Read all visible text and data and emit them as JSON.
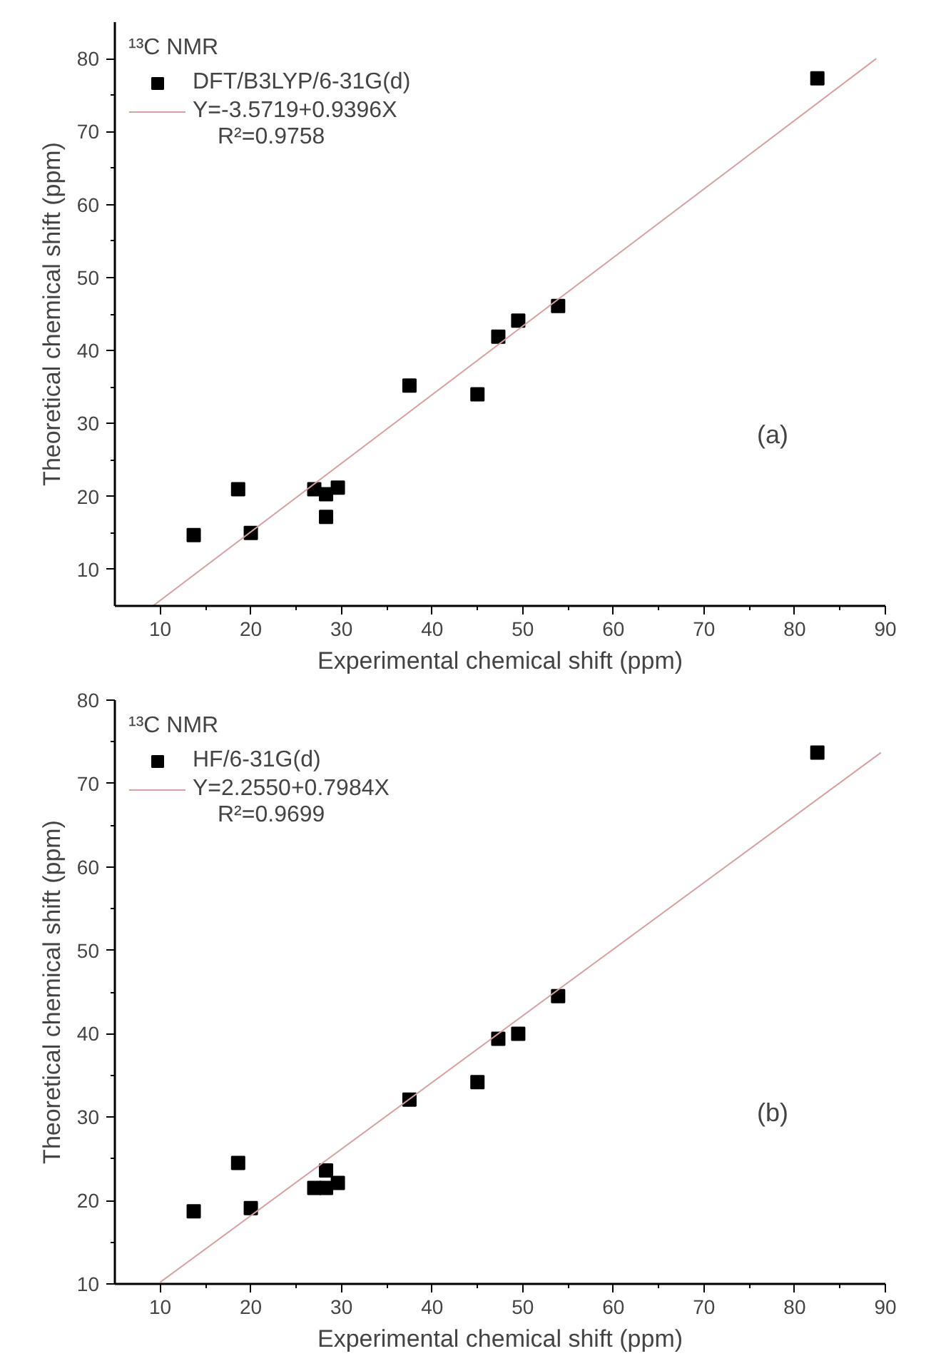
{
  "chart_data": [
    {
      "type": "scatter",
      "xlabel": "Experimental chemical shift (ppm)",
      "ylabel": "Theoretical chemical shift (ppm)",
      "legend_title": "¹³C NMR",
      "legend": "top left",
      "marker": "square",
      "grid": false,
      "xlim": [
        5,
        90
      ],
      "ylim": [
        5,
        85
      ],
      "xticks": [
        10,
        20,
        30,
        40,
        50,
        60,
        70,
        80,
        90
      ],
      "yticks": [
        10,
        20,
        30,
        40,
        50,
        60,
        70,
        80
      ],
      "series": [
        {
          "name": "DFT/B3LYP/6-31G(d)",
          "color": "#000000",
          "x": [
            13.7,
            18.6,
            20,
            27,
            28.3,
            28.3,
            29.6,
            37.5,
            45,
            47.3,
            49.5,
            53.9,
            82.5
          ],
          "values": [
            14.7,
            21,
            15,
            21,
            20.3,
            17.2,
            21.2,
            35.2,
            34,
            41.9,
            44.1,
            46.1,
            77.3
          ]
        },
        {
          "name": "Y=-3.5719+0.9396X",
          "type": "line",
          "marker": "none",
          "color": "#d9a0a0",
          "x": [
            9.2,
            89
          ],
          "values": [
            5,
            80
          ]
        }
      ],
      "annotations": [
        "R²=0.9758",
        "(a)"
      ]
    },
    {
      "type": "scatter",
      "xlabel": "Experimental chemical shift (ppm)",
      "ylabel": "Theoretical chemical shift (ppm)",
      "legend_title": "¹³C NMR",
      "legend": "top left",
      "marker": "square",
      "grid": false,
      "xlim": [
        5,
        90
      ],
      "ylim": [
        10,
        80
      ],
      "xticks": [
        10,
        20,
        30,
        40,
        50,
        60,
        70,
        80,
        90
      ],
      "yticks": [
        10,
        20,
        30,
        40,
        50,
        60,
        70,
        80
      ],
      "series": [
        {
          "name": "HF/6-31G(d)",
          "color": "#000000",
          "x": [
            13.7,
            18.6,
            20,
            27,
            28.3,
            28.3,
            29.6,
            37.5,
            45,
            47.3,
            49.5,
            53.9,
            82.5
          ],
          "values": [
            18.7,
            24.5,
            19.1,
            21.5,
            21.5,
            23.6,
            22.1,
            32.1,
            34.2,
            39.4,
            40,
            44.5,
            73.7
          ]
        },
        {
          "name": "Y=2.2550+0.7984X",
          "type": "line",
          "marker": "none",
          "color": "#d9a0a0",
          "x": [
            10,
            89.5
          ],
          "values": [
            10.2,
            73.7
          ]
        }
      ],
      "annotations": [
        "R²=0.9699",
        "(b)"
      ]
    }
  ]
}
